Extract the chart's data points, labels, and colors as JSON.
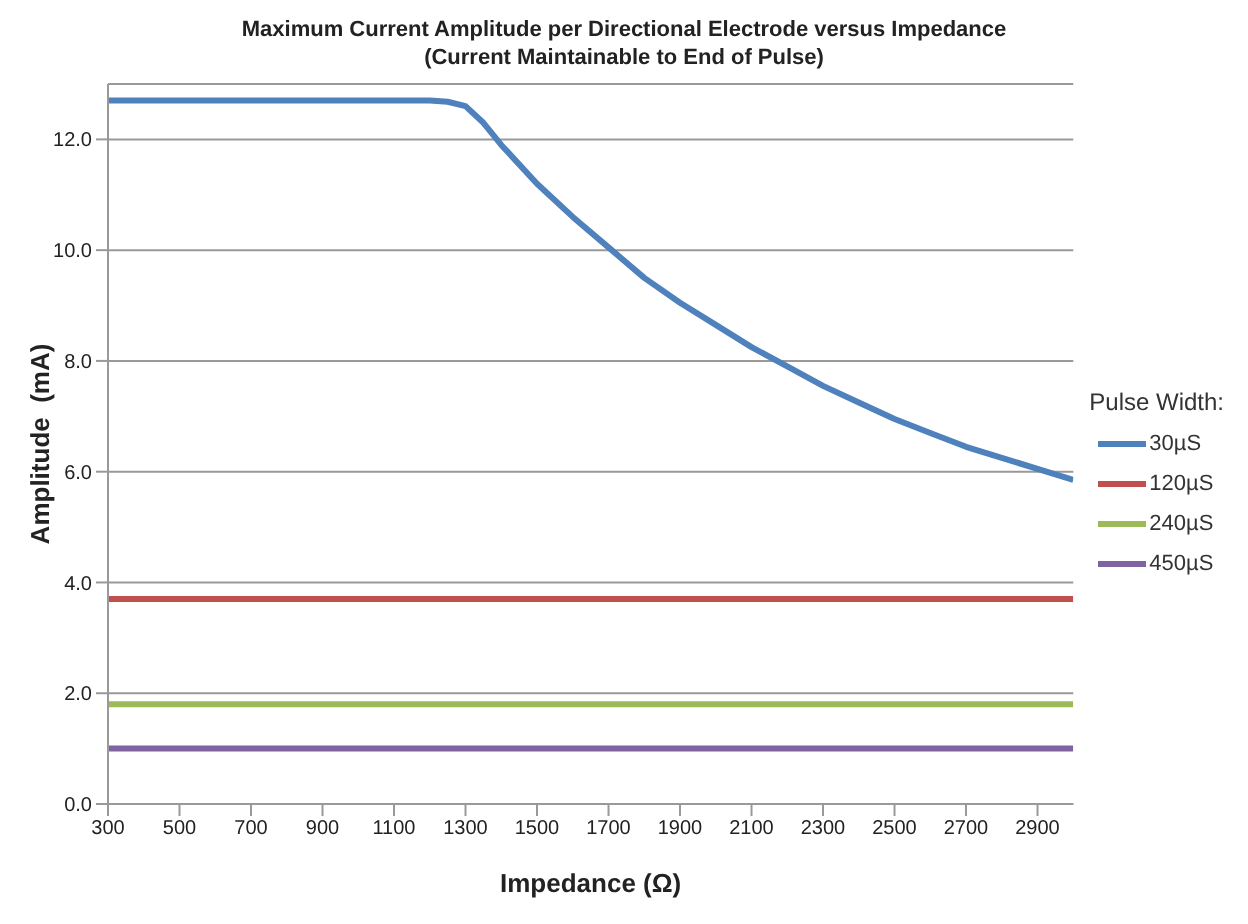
{
  "chart_data": {
    "type": "line",
    "title": "Maximum Current Amplitude per Directional Electrode versus Impedance",
    "subtitle": "(Current Maintainable to End of Pulse)",
    "xlabel": "Impedance (Ω)",
    "ylabel": "Amplitude  (mA)",
    "legend_title": "Pulse Width:",
    "legend": "right",
    "grid": "y",
    "marker": "none",
    "line_style": "solid",
    "xlim": [
      300,
      3000
    ],
    "xticks": [
      300,
      500,
      700,
      900,
      1100,
      1300,
      1500,
      1700,
      1900,
      2100,
      2300,
      2500,
      2700,
      2900
    ],
    "ylim": [
      0,
      13
    ],
    "yticks": [
      {
        "value": 0,
        "label": "0.0"
      },
      {
        "value": 2,
        "label": "2.0"
      },
      {
        "value": 4,
        "label": "4.0"
      },
      {
        "value": 6,
        "label": "6.0"
      },
      {
        "value": 8,
        "label": "8.0"
      },
      {
        "value": 10,
        "label": "10.0"
      },
      {
        "value": 12,
        "label": "12.0"
      }
    ],
    "series": [
      {
        "name": "30µS",
        "color": "#4f81bd",
        "x": [
          300,
          700,
          1100,
          1200,
          1250,
          1300,
          1350,
          1400,
          1500,
          1600,
          1700,
          1800,
          1900,
          2000,
          2100,
          2200,
          2300,
          2400,
          2500,
          2600,
          2700,
          2800,
          2900,
          3000
        ],
        "values": [
          12.7,
          12.7,
          12.7,
          12.7,
          12.68,
          12.6,
          12.3,
          11.9,
          11.2,
          10.6,
          10.05,
          9.5,
          9.05,
          8.65,
          8.25,
          7.9,
          7.55,
          7.25,
          6.95,
          6.7,
          6.45,
          6.25,
          6.05,
          5.85
        ]
      },
      {
        "name": "120µS",
        "color": "#c0504d",
        "x": [
          300,
          3000
        ],
        "values": [
          3.7,
          3.7
        ]
      },
      {
        "name": "240µS",
        "color": "#9bbb59",
        "x": [
          300,
          3000
        ],
        "values": [
          1.8,
          1.8
        ]
      },
      {
        "name": "450µS",
        "color": "#8064a2",
        "x": [
          300,
          3000
        ],
        "values": [
          1.0,
          1.0
        ]
      }
    ]
  }
}
